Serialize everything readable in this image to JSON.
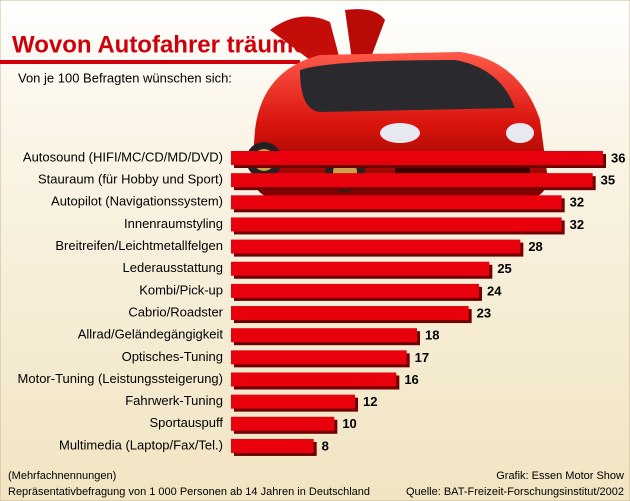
{
  "chart_data": {
    "type": "bar",
    "orientation": "horizontal",
    "title": "Wovon Autofahrer träumen",
    "subtitle": "Von je 100 Befragten wünschen sich:",
    "categories": [
      "Autosound (HIFI/MC/CD/MD/DVD)",
      "Stauraum (für Hobby und Sport)",
      "Autopilot (Navigationssystem)",
      "Innenraumstyling",
      "Breitreifen/Leichtmetallfelgen",
      "Lederausstattung",
      "Kombi/Pick-up",
      "Cabrio/Roadster",
      "Allrad/Geländegängigkeit",
      "Optisches-Tuning",
      "Motor-Tuning (Leistungssteigerung)",
      "Fahrwerk-Tuning",
      "Sportauspuff",
      "Multimedia (Laptop/Fax/Tel.)"
    ],
    "values": [
      36,
      35,
      32,
      32,
      28,
      25,
      24,
      23,
      18,
      17,
      16,
      12,
      10,
      8
    ],
    "color": "#e8000c",
    "notes": [
      "(Mehrfachnennungen)",
      "Repräsentativbefragung von 1 000 Personen ab 14 Jahren in Deutschland"
    ],
    "credits": [
      "Grafik: Essen Motor Show",
      "Quelle: BAT-Freizeit-Forschungsinstitut/2002"
    ]
  }
}
